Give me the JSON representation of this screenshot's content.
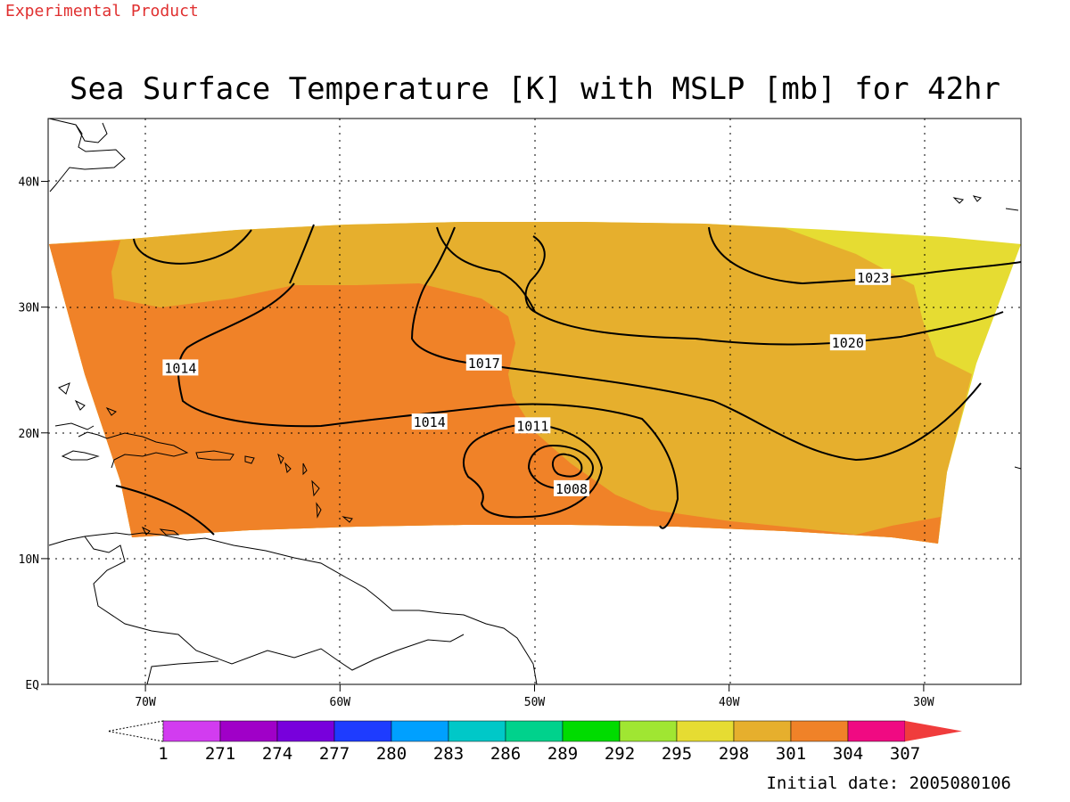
{
  "header": {
    "experimental_label": "Experimental Product",
    "title": "Sea Surface Temperature [K] with MSLP [mb] for 42hr",
    "initial_date": "Initial date: 2005080106"
  },
  "map": {
    "lon_range": [
      -75,
      -25
    ],
    "lat_range": [
      0,
      45
    ],
    "lon_ticks": [
      {
        "value": -70,
        "label": "70W"
      },
      {
        "value": -60,
        "label": "60W"
      },
      {
        "value": -50,
        "label": "50W"
      },
      {
        "value": -40,
        "label": "40W"
      },
      {
        "value": -30,
        "label": "30W"
      }
    ],
    "lat_ticks": [
      {
        "value": 0,
        "label": "EQ"
      },
      {
        "value": 10,
        "label": "10N"
      },
      {
        "value": 20,
        "label": "20N"
      },
      {
        "value": 30,
        "label": "30N"
      },
      {
        "value": 40,
        "label": "40N"
      }
    ],
    "grid": "dotted",
    "isobar_labels": [
      {
        "text": "1023",
        "lon": -32.6,
        "lat": 32.4
      },
      {
        "text": "1020",
        "lon": -33.9,
        "lat": 27.2
      },
      {
        "text": "1017",
        "lon": -52.6,
        "lat": 25.6
      },
      {
        "text": "1014",
        "lon": -68.2,
        "lat": 25.2
      },
      {
        "text": "1014",
        "lon": -55.4,
        "lat": 20.9
      },
      {
        "text": "1011",
        "lon": -50.1,
        "lat": 20.6
      },
      {
        "text": "1008",
        "lon": -48.1,
        "lat": 15.6
      }
    ]
  },
  "colorbar": {
    "colors": [
      "#d23cf0",
      "#a000c8",
      "#7800dc",
      "#1e3cff",
      "#00a0ff",
      "#00c8c8",
      "#00d28c",
      "#00dc00",
      "#a0e632",
      "#e6dc32",
      "#e6af2d",
      "#f08228",
      "#f00a82",
      "#f03c3c"
    ],
    "labels": [
      "1",
      "271",
      "274",
      "277",
      "280",
      "283",
      "286",
      "289",
      "292",
      "295",
      "298",
      "301",
      "304",
      "307"
    ]
  },
  "colors": {
    "sst_298": "#e6dc32",
    "sst_301": "#e6af2d",
    "sst_304": "#f08228",
    "accent_text": "#e03030"
  }
}
